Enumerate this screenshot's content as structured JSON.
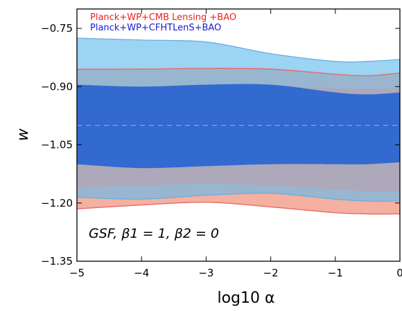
{
  "chart_data": {
    "type": "area",
    "xlabel": "log10 α",
    "ylabel": "w",
    "xlim": [
      -5,
      0
    ],
    "ylim": [
      -1.35,
      -0.7
    ],
    "x_ticks": [
      -5,
      -4,
      -3,
      -2,
      -1,
      0
    ],
    "x_tick_labels": [
      "−5",
      "−4",
      "−3",
      "−2",
      "−1",
      "0"
    ],
    "y_ticks": [
      -0.75,
      -0.9,
      -1.05,
      -1.2,
      -1.35
    ],
    "y_tick_labels": [
      "−0.75",
      "−0.90",
      "−1.05",
      "−1.20",
      "−1.35"
    ],
    "annotation": "GSF, β1 = 1, β2 = 0",
    "reference_line_y": -1.0,
    "legend_location": "top-left",
    "legend": [
      {
        "name": "Planck+WP+CMB Lensing +BAO",
        "color": "#ee2020"
      },
      {
        "name": "Planck+WP+CFHTLenS+BAO",
        "color": "#1818d0"
      }
    ],
    "x": [
      -5,
      -4,
      -3,
      -2,
      -1,
      -0.5,
      0
    ],
    "series": [
      {
        "name": "Planck+WP+CMB Lensing +BAO",
        "color": "#e87060",
        "contour_95": {
          "upper": [
            -0.855,
            -0.855,
            -0.853,
            -0.855,
            -0.868,
            -0.872,
            -0.865
          ],
          "lower": [
            -1.215,
            -1.205,
            -1.198,
            -1.21,
            -1.225,
            -1.228,
            -1.228
          ]
        }
      },
      {
        "name": "Planck+WP+CFHTLenS+BAO",
        "color": "#3070d0",
        "contour_68": {
          "upper": [
            -0.895,
            -0.9,
            -0.895,
            -0.895,
            -0.915,
            -0.92,
            -0.915
          ],
          "lower": [
            -1.1,
            -1.11,
            -1.105,
            -1.1,
            -1.1,
            -1.1,
            -1.095
          ]
        },
        "contour_95": {
          "upper": [
            -0.775,
            -0.78,
            -0.785,
            -0.815,
            -0.835,
            -0.835,
            -0.83
          ],
          "lower": [
            -1.185,
            -1.19,
            -1.18,
            -1.175,
            -1.19,
            -1.195,
            -1.195
          ]
        }
      }
    ]
  }
}
